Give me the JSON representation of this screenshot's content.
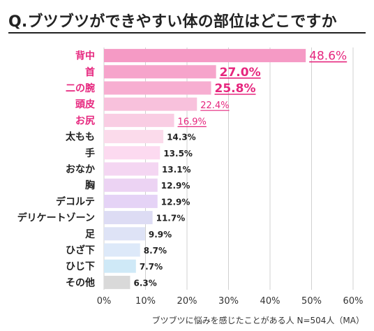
{
  "title": "Q.ブツブツができやすい体の部位はどこですか",
  "footnote": "ブツブツに悩みを感じたことがある人 N=504人（MA）",
  "chart_data": {
    "type": "bar",
    "orientation": "horizontal",
    "title": "Q.ブツブツができやすい体の部位はどこですか",
    "categories": [
      "背中",
      "首",
      "二の腕",
      "頭皮",
      "お尻",
      "太もも",
      "手",
      "おなか",
      "胸",
      "デコルテ",
      "デリケートゾーン",
      "足",
      "ひざ下",
      "ひじ下",
      "その他"
    ],
    "values": [
      48.6,
      27.0,
      25.8,
      22.4,
      16.9,
      14.3,
      13.5,
      13.1,
      12.9,
      12.9,
      11.7,
      9.9,
      8.7,
      7.7,
      6.3
    ],
    "value_labels": [
      "48.6%",
      "27.0%",
      "25.8%",
      "22.4%",
      "16.9%",
      "14.3%",
      "13.5%",
      "13.1%",
      "12.9%",
      "12.9%",
      "11.7%",
      "9.9%",
      "8.7%",
      "7.7%",
      "6.3%"
    ],
    "xlim": [
      0,
      60
    ],
    "xticks": [
      0,
      10,
      20,
      30,
      40,
      50,
      60
    ],
    "xtick_labels": [
      "0%",
      "10%",
      "20%",
      "30%",
      "40%",
      "50%",
      "60%"
    ],
    "grid": true,
    "colors": [
      "#f59ac5",
      "#f6a4cb",
      "#f7aed1",
      "#f8c1dc",
      "#f9cde3",
      "#fbdbeb",
      "#fcdaf0",
      "#f4d6f2",
      "#ecd3f3",
      "#e5d3f6",
      "#dddcf4",
      "#dee3f6",
      "#dde9f9",
      "#cfe9f7",
      "#d9d9d9"
    ],
    "highlight_color": "#e6267e",
    "top_n_highlighted": 5,
    "normal_label_color": "#222222"
  }
}
